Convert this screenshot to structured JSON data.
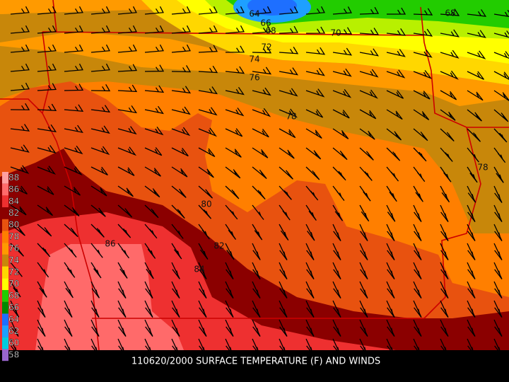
{
  "legend": {
    "labels": [
      "88",
      "86",
      "84",
      "82",
      "80",
      "78",
      "76",
      "74",
      "72",
      "70",
      "68",
      "66",
      "64",
      "62",
      "60",
      "58"
    ],
    "colors": [
      "#ff9f9f",
      "#ff6a6a",
      "#ee3030",
      "#8b0000",
      "#e8520f",
      "#ff7f00",
      "#ff9a00",
      "#c8870a",
      "#ffd700",
      "#ffff00",
      "#22cc00",
      "#008800",
      "#1e6fff",
      "#1ea0ff",
      "#00ccdd",
      "#9966cc"
    ]
  },
  "contour_labels": [
    "64",
    "66",
    "68",
    "68",
    "70",
    "72",
    "74",
    "76",
    "78",
    "78",
    "80",
    "82",
    "84",
    "86"
  ],
  "caption": "110620/2000 SURFACE TEMPERATURE (F) AND WINDS"
}
